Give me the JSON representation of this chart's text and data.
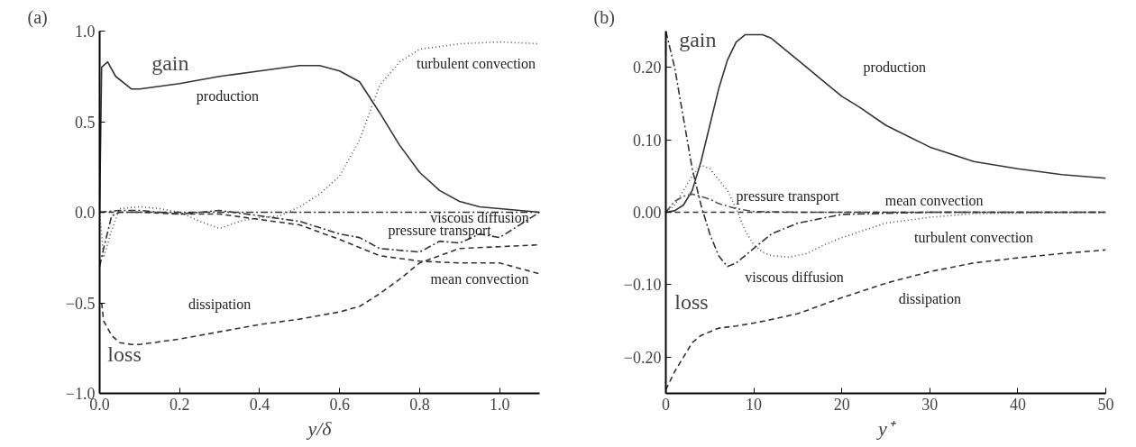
{
  "chart_data": [
    {
      "type": "line",
      "title": "(a)",
      "xlabel": "y/δ",
      "xlim": [
        0,
        1.1
      ],
      "ylim": [
        -1.0,
        1.0
      ],
      "xticks": [
        {
          "value": 0,
          "label": "0.0"
        },
        0.2,
        0.4,
        0.6,
        0.8,
        {
          "value": 1,
          "label": "1.0"
        }
      ],
      "yticks": [
        {
          "value": -1,
          "label": "−1.0"
        },
        {
          "value": -0.5,
          "label": "−0.5"
        },
        {
          "value": 0,
          "label": "0.0"
        },
        0.5,
        {
          "value": 1,
          "label": "1.0"
        }
      ],
      "annotations": [
        "gain",
        "loss"
      ],
      "grid": false,
      "series": [
        {
          "name": "production",
          "color": "#333333",
          "line_style": "solid",
          "x": [
            0,
            0.005,
            0.02,
            0.04,
            0.08,
            0.1,
            0.2,
            0.3,
            0.4,
            0.5,
            0.55,
            0.6,
            0.65,
            0.7,
            0.75,
            0.8,
            0.85,
            0.9,
            0.95,
            1.0,
            1.05,
            1.1
          ],
          "values": [
            0,
            0.8,
            0.83,
            0.75,
            0.68,
            0.68,
            0.71,
            0.75,
            0.78,
            0.81,
            0.81,
            0.78,
            0.72,
            0.55,
            0.37,
            0.22,
            0.12,
            0.06,
            0.03,
            0.02,
            0.01,
            0.0
          ]
        },
        {
          "name": "turbulent convection",
          "color": "#555555",
          "line_style": "dotted",
          "x": [
            0,
            0.01,
            0.03,
            0.05,
            0.1,
            0.15,
            0.2,
            0.25,
            0.3,
            0.35,
            0.4,
            0.45,
            0.5,
            0.55,
            0.6,
            0.65,
            0.7,
            0.75,
            0.8,
            0.9,
            1.0,
            1.1
          ],
          "values": [
            0,
            -0.25,
            -0.1,
            0.02,
            0.03,
            0.02,
            0,
            -0.05,
            -0.09,
            -0.05,
            -0.03,
            -0.02,
            0.03,
            0.1,
            0.2,
            0.4,
            0.7,
            0.83,
            0.9,
            0.93,
            0.94,
            0.93
          ]
        },
        {
          "name": "viscous diffusion",
          "color": "#333333",
          "line_style": "dashdot",
          "x": [
            0,
            0.01,
            0.03,
            0.05,
            0.1,
            0.3,
            0.5,
            0.7,
            0.9,
            1.1
          ],
          "values": [
            -0.3,
            -0.2,
            -0.02,
            0,
            0,
            0,
            0,
            0,
            0,
            0
          ]
        },
        {
          "name": "pressure transport",
          "color": "#333333",
          "line_style": "dashdot",
          "x": [
            0,
            0.05,
            0.1,
            0.2,
            0.3,
            0.4,
            0.5,
            0.6,
            0.65,
            0.7,
            0.75,
            0.8,
            0.85,
            0.9,
            0.95,
            1.0,
            1.05,
            1.1
          ],
          "values": [
            0,
            0.01,
            0.01,
            -0.01,
            0.01,
            -0.02,
            -0.05,
            -0.12,
            -0.14,
            -0.2,
            -0.21,
            -0.22,
            -0.16,
            -0.17,
            -0.12,
            -0.14,
            -0.07,
            0.0
          ]
        },
        {
          "name": "mean convection",
          "color": "#333333",
          "line_style": "dashed",
          "x": [
            0,
            0.1,
            0.2,
            0.3,
            0.4,
            0.5,
            0.6,
            0.7,
            0.8,
            0.9,
            1.0,
            1.1
          ],
          "values": [
            0,
            0,
            -0.01,
            -0.01,
            -0.04,
            -0.07,
            -0.15,
            -0.24,
            -0.27,
            -0.28,
            -0.28,
            -0.34
          ]
        },
        {
          "name": "dissipation",
          "color": "#333333",
          "line_style": "dashed",
          "x": [
            0.005,
            0.01,
            0.03,
            0.05,
            0.08,
            0.1,
            0.2,
            0.3,
            0.4,
            0.5,
            0.6,
            0.65,
            0.7,
            0.75,
            0.8,
            0.9,
            1.0,
            1.1
          ],
          "values": [
            -0.5,
            -0.6,
            -0.68,
            -0.72,
            -0.73,
            -0.73,
            -0.7,
            -0.66,
            -0.62,
            -0.59,
            -0.55,
            -0.52,
            -0.45,
            -0.37,
            -0.28,
            -0.2,
            -0.19,
            -0.18
          ]
        }
      ]
    },
    {
      "type": "line",
      "title": "(b)",
      "xlabel": "y⁺",
      "xlim": [
        0,
        50
      ],
      "ylim": [
        -0.25,
        0.25
      ],
      "xticks": [
        0,
        10,
        20,
        30,
        40,
        50
      ],
      "yticks": [
        {
          "value": -0.2,
          "label": "−0.20"
        },
        {
          "value": -0.1,
          "label": "−0.10"
        },
        {
          "value": 0,
          "label": "0.00"
        },
        {
          "value": 0.1,
          "label": "0.10"
        },
        {
          "value": 0.2,
          "label": "0.20"
        }
      ],
      "annotations": [
        "gain",
        "loss"
      ],
      "grid": false,
      "series": [
        {
          "name": "production",
          "color": "#333333",
          "line_style": "solid",
          "x": [
            0,
            1,
            2,
            3,
            4,
            5,
            6,
            7,
            8,
            9,
            10,
            11,
            12,
            14,
            16,
            18,
            20,
            22,
            25,
            30,
            35,
            40,
            45,
            50
          ],
          "values": [
            0,
            0.002,
            0.01,
            0.03,
            0.07,
            0.12,
            0.17,
            0.21,
            0.235,
            0.245,
            0.245,
            0.245,
            0.24,
            0.22,
            0.2,
            0.18,
            0.16,
            0.145,
            0.12,
            0.09,
            0.07,
            0.06,
            0.052,
            0.047
          ]
        },
        {
          "name": "viscous diffusion",
          "color": "#333333",
          "line_style": "dashdot",
          "x": [
            0,
            1,
            2,
            3,
            4,
            5,
            6,
            7,
            8,
            10,
            12,
            15,
            20,
            30,
            50
          ],
          "values": [
            0.25,
            0.2,
            0.13,
            0.06,
            0.01,
            -0.03,
            -0.06,
            -0.075,
            -0.07,
            -0.05,
            -0.03,
            -0.015,
            -0.003,
            0,
            0
          ]
        },
        {
          "name": "pressure transport",
          "color": "#555555",
          "line_style": "dashdot",
          "x": [
            0,
            1,
            2,
            3,
            4,
            5,
            6,
            8,
            10,
            15,
            50
          ],
          "values": [
            0,
            0.015,
            0.022,
            0.025,
            0.022,
            0.018,
            0.012,
            0.005,
            0.001,
            0,
            0
          ]
        },
        {
          "name": "turbulent convection",
          "color": "#555555",
          "line_style": "dotted",
          "x": [
            0,
            1,
            2,
            3,
            4,
            5,
            6,
            7,
            8,
            9,
            10,
            11,
            12,
            14,
            16,
            18,
            20,
            25,
            30,
            35,
            50
          ],
          "values": [
            0,
            0.01,
            0.03,
            0.05,
            0.065,
            0.06,
            0.045,
            0.03,
            0.005,
            -0.025,
            -0.045,
            -0.055,
            -0.06,
            -0.062,
            -0.057,
            -0.045,
            -0.035,
            -0.015,
            -0.007,
            -0.002,
            0
          ]
        },
        {
          "name": "mean convection",
          "color": "#333333",
          "line_style": "dashed",
          "x": [
            0,
            10,
            20,
            30,
            40,
            50
          ],
          "values": [
            0,
            0,
            0,
            0,
            0,
            0
          ]
        },
        {
          "name": "dissipation",
          "color": "#333333",
          "line_style": "dashed",
          "x": [
            0,
            1,
            2,
            3,
            4,
            5,
            6,
            8,
            10,
            12,
            15,
            20,
            25,
            30,
            35,
            40,
            45,
            50
          ],
          "values": [
            -0.245,
            -0.22,
            -0.2,
            -0.18,
            -0.17,
            -0.165,
            -0.16,
            -0.157,
            -0.153,
            -0.148,
            -0.14,
            -0.118,
            -0.098,
            -0.082,
            -0.07,
            -0.063,
            -0.057,
            -0.052
          ]
        }
      ]
    }
  ]
}
